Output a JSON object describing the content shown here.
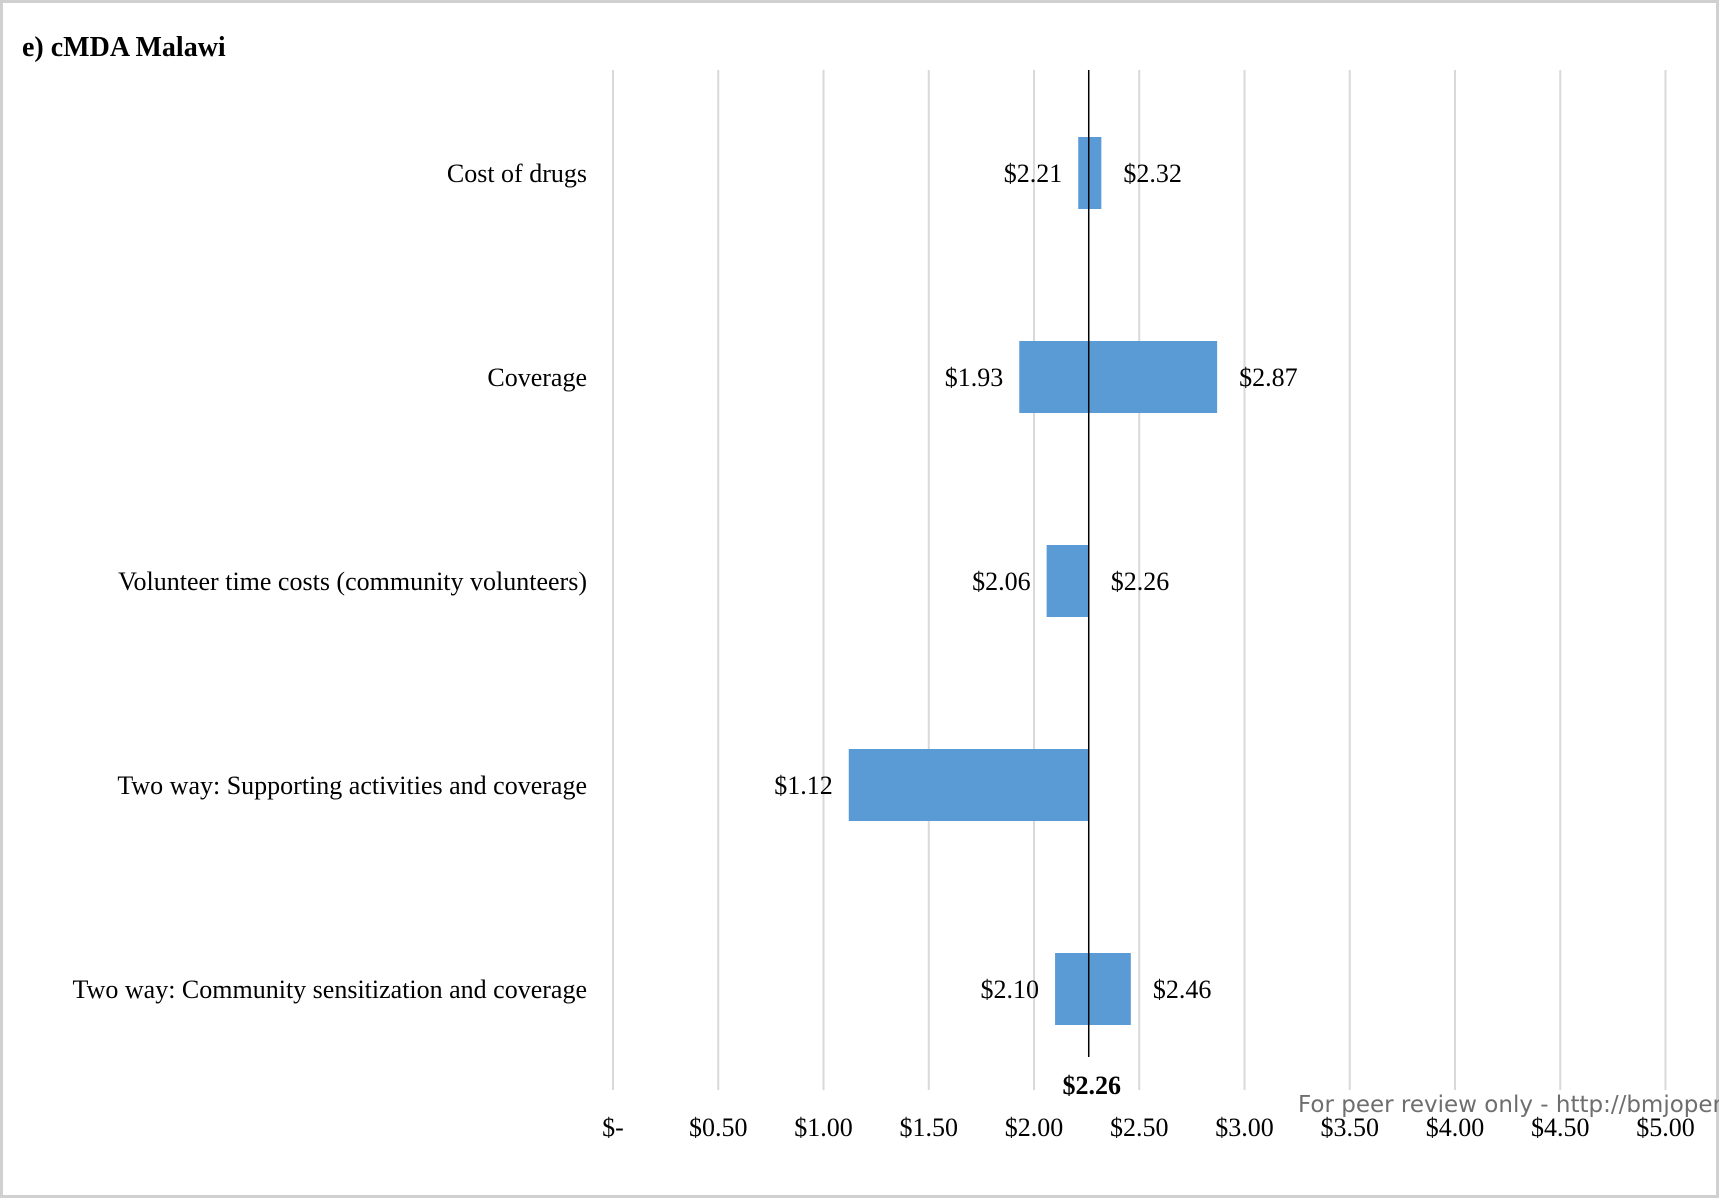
{
  "chart_data": {
    "type": "bar",
    "subtype": "tornado",
    "title": "e) cMDA Malawi",
    "orientation": "horizontal",
    "categories": [
      "Cost of drugs",
      "Coverage",
      "Volunteer time costs (community volunteers)",
      "Two way: Supporting activities and coverage",
      "Two way: Community sensitization and coverage"
    ],
    "baseline": 2.26,
    "baseline_label": "$2.26",
    "low": [
      2.21,
      1.93,
      2.06,
      1.12,
      2.1
    ],
    "high": [
      2.32,
      2.87,
      2.26,
      2.26,
      2.46
    ],
    "low_labels": [
      "$2.21",
      "$1.93",
      "$2.06",
      "$1.12",
      "$2.10"
    ],
    "high_labels": [
      "$2.32",
      "$2.87",
      "$2.26",
      "",
      "$2.46"
    ],
    "xlim": [
      0,
      5
    ],
    "xticks": [
      0,
      0.5,
      1,
      1.5,
      2,
      2.5,
      3,
      3.5,
      4,
      4.5,
      5
    ],
    "xtick_labels": [
      "$-",
      "$0.50",
      "$1.00",
      "$1.50",
      "$2.00",
      "$2.50",
      "$3.00",
      "$3.50",
      "$4.00",
      "$4.50",
      "$5.00"
    ],
    "grid": true,
    "bar_color": "#5b9bd5",
    "grid_color": "#d9d9d9"
  },
  "watermark": "For peer review only - http://bmjopen"
}
